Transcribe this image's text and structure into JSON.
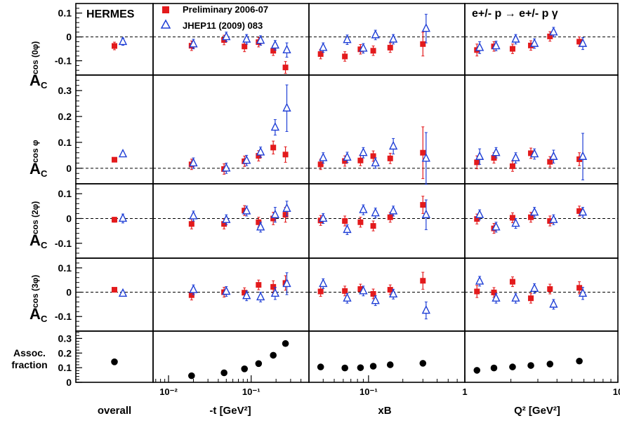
{
  "labels": {
    "experiment": "HERMES",
    "reaction": "e+/- p → e+/- p γ",
    "legend_prelim": "Preliminary 2006-07",
    "legend_jhep": "JHEP11 (2009) 083",
    "row_labels": [
      {
        "main": "A",
        "sub": "C",
        "sup": "cos (0φ)"
      },
      {
        "main": "A",
        "sub": "C",
        "sup": "cos φ"
      },
      {
        "main": "A",
        "sub": "C",
        "sup": "cos (2φ)"
      },
      {
        "main": "A",
        "sub": "C",
        "sup": "cos (3φ)"
      }
    ],
    "assoc_label": [
      "Assoc.",
      "fraction"
    ],
    "col_labels": [
      "overall",
      "-t [GeV²]",
      "xB",
      "Q² [GeV²]"
    ]
  },
  "colors": {
    "prelim": "#e31a1c",
    "jhep": "#1f3fd6"
  },
  "chart_data": {
    "type": "scatter",
    "columns": [
      {
        "name": "overall",
        "scale": "none",
        "xlim": null,
        "ticks": []
      },
      {
        "name": "-t",
        "scale": "log",
        "xlim": [
          0.0065,
          0.5
        ],
        "ticks": [
          {
            "v": 0.01,
            "label": "10⁻²"
          },
          {
            "v": 0.1,
            "label": "10⁻¹"
          }
        ]
      },
      {
        "name": "xB",
        "scale": "log",
        "xlim": [
          0.03,
          0.7
        ],
        "ticks": [
          {
            "v": 0.1,
            "label": "10⁻¹"
          }
        ]
      },
      {
        "name": "Q2",
        "scale": "log",
        "xlim": [
          1,
          10
        ],
        "ticks": [
          {
            "v": 1,
            "label": "1"
          },
          {
            "v": 10,
            "label": "10"
          }
        ]
      }
    ],
    "rows": [
      {
        "name": "cos0phi",
        "ylim": [
          -0.16,
          0.14
        ],
        "ticks": [
          0.1,
          0,
          -0.1
        ],
        "tick_labels": [
          "0.1",
          "0",
          "-0.1"
        ]
      },
      {
        "name": "cosphi",
        "ylim": [
          -0.06,
          0.36
        ],
        "ticks": [
          0.3,
          0.2,
          0.1,
          0
        ],
        "tick_labels": [
          "0.3",
          "0.2",
          "0.1",
          "0"
        ]
      },
      {
        "name": "cos2phi",
        "ylim": [
          -0.16,
          0.14
        ],
        "ticks": [
          0.1,
          0,
          -0.1
        ],
        "tick_labels": [
          "0.1",
          "0",
          "-0.1"
        ]
      },
      {
        "name": "cos3phi",
        "ylim": [
          -0.16,
          0.14
        ],
        "ticks": [
          0.1,
          0,
          -0.1
        ],
        "tick_labels": [
          "0.1",
          "0",
          "-0.1"
        ]
      },
      {
        "name": "assoc",
        "ylim": [
          0,
          0.35
        ],
        "ticks": [
          0.3,
          0.2,
          0.1,
          0
        ],
        "tick_labels": [
          "0.3",
          "0.2",
          "0.1",
          "0"
        ]
      }
    ],
    "x_points": {
      "prelim": [
        [
          0
        ],
        [
          0.019,
          0.047,
          0.083,
          0.123,
          0.185,
          0.26
        ],
        [
          0.038,
          0.062,
          0.085,
          0.11,
          0.155,
          0.3
        ],
        [
          1.2,
          1.55,
          2.05,
          2.7,
          3.6,
          5.6
        ]
      ],
      "jhep": [
        [
          0
        ],
        [
          0.02,
          0.05,
          0.088,
          0.13,
          0.195,
          0.27
        ],
        [
          0.04,
          0.065,
          0.09,
          0.115,
          0.165,
          0.32
        ],
        [
          1.25,
          1.6,
          2.15,
          2.85,
          3.8,
          5.9
        ]
      ]
    },
    "series": [
      {
        "name": "Preliminary 2006-07",
        "values": [
          [
            [
              [
                -0.038,
                0.016
              ]
            ],
            [
              [
                -0.037,
                0.02
              ],
              [
                -0.013,
                0.02
              ],
              [
                -0.04,
                0.022
              ],
              [
                -0.022,
                0.02
              ],
              [
                -0.058,
                0.02
              ],
              [
                -0.128,
                0.025
              ]
            ],
            [
              [
                -0.072,
                0.02
              ],
              [
                -0.082,
                0.02
              ],
              [
                -0.052,
                0.02
              ],
              [
                -0.058,
                0.02
              ],
              [
                -0.045,
                0.02
              ],
              [
                -0.03,
                0.05
              ]
            ],
            [
              [
                -0.055,
                0.025
              ],
              [
                -0.04,
                0.02
              ],
              [
                -0.05,
                0.02
              ],
              [
                -0.036,
                0.02
              ],
              [
                0.002,
                0.02
              ],
              [
                -0.02,
                0.02
              ]
            ]
          ],
          [
            [
              [
                0.033,
                0.008
              ]
            ],
            [
              [
                0.015,
                0.02
              ],
              [
                -0.003,
                0.02
              ],
              [
                0.027,
                0.02
              ],
              [
                0.048,
                0.02
              ],
              [
                0.08,
                0.025
              ],
              [
                0.053,
                0.03
              ]
            ],
            [
              [
                0.015,
                0.02
              ],
              [
                0.028,
                0.02
              ],
              [
                0.03,
                0.02
              ],
              [
                0.047,
                0.02
              ],
              [
                0.038,
                0.02
              ],
              [
                0.06,
                0.1
              ]
            ],
            [
              [
                0.023,
                0.025
              ],
              [
                0.04,
                0.02
              ],
              [
                0.008,
                0.02
              ],
              [
                0.058,
                0.02
              ],
              [
                0.025,
                0.02
              ],
              [
                0.035,
                0.025
              ]
            ]
          ],
          [
            [
              [
                -0.005,
                0.01
              ]
            ],
            [
              [
                -0.022,
                0.02
              ],
              [
                -0.022,
                0.02
              ],
              [
                0.032,
                0.02
              ],
              [
                -0.015,
                0.02
              ],
              [
                0.0,
                0.025
              ],
              [
                0.015,
                0.03
              ]
            ],
            [
              [
                -0.008,
                0.02
              ],
              [
                -0.01,
                0.02
              ],
              [
                -0.015,
                0.02
              ],
              [
                -0.03,
                0.02
              ],
              [
                0.005,
                0.02
              ],
              [
                0.055,
                0.035
              ]
            ],
            [
              [
                -0.002,
                0.02
              ],
              [
                -0.04,
                0.02
              ],
              [
                0.003,
                0.02
              ],
              [
                0.005,
                0.02
              ],
              [
                -0.01,
                0.02
              ],
              [
                0.03,
                0.02
              ]
            ]
          ],
          [
            [
              [
                0.01,
                0.008
              ]
            ],
            [
              [
                -0.012,
                0.02
              ],
              [
                0.0,
                0.02
              ],
              [
                -0.002,
                0.02
              ],
              [
                0.03,
                0.02
              ],
              [
                0.022,
                0.025
              ],
              [
                0.038,
                0.03
              ]
            ],
            [
              [
                0.003,
                0.02
              ],
              [
                0.005,
                0.02
              ],
              [
                0.013,
                0.02
              ],
              [
                -0.007,
                0.02
              ],
              [
                0.01,
                0.02
              ],
              [
                0.047,
                0.035
              ]
            ],
            [
              [
                0.003,
                0.025
              ],
              [
                -0.001,
                0.02
              ],
              [
                0.043,
                0.02
              ],
              [
                -0.025,
                0.02
              ],
              [
                0.013,
                0.02
              ],
              [
                0.018,
                0.025
              ]
            ]
          ],
          [
            [
              [
                0.14,
                0
              ]
            ],
            [
              [
                0.045,
                0
              ],
              [
                0.065,
                0
              ],
              [
                0.092,
                0
              ],
              [
                0.128,
                0
              ],
              [
                0.185,
                0
              ],
              [
                0.265,
                0
              ]
            ],
            [
              [
                0.105,
                0
              ],
              [
                0.098,
                0
              ],
              [
                0.1,
                0
              ],
              [
                0.11,
                0
              ],
              [
                0.12,
                0
              ],
              [
                0.13,
                0
              ]
            ],
            [
              [
                0.082,
                0
              ],
              [
                0.098,
                0
              ],
              [
                0.105,
                0
              ],
              [
                0.115,
                0
              ],
              [
                0.125,
                0
              ],
              [
                0.145,
                0
              ]
            ]
          ]
        ]
      },
      {
        "name": "JHEP11 (2009) 083",
        "values": [
          [
            [
              [
                -0.02,
                0.015
              ]
            ],
            [
              [
                -0.03,
                0.02
              ],
              [
                0.0,
                0.02
              ],
              [
                -0.01,
                0.02
              ],
              [
                -0.015,
                0.02
              ],
              [
                -0.035,
                0.02
              ],
              [
                -0.055,
                0.03
              ]
            ],
            [
              [
                -0.045,
                0.02
              ],
              [
                -0.012,
                0.02
              ],
              [
                -0.048,
                0.02
              ],
              [
                0.008,
                0.02
              ],
              [
                -0.01,
                0.02
              ],
              [
                0.035,
                0.06
              ]
            ],
            [
              [
                -0.045,
                0.025
              ],
              [
                -0.038,
                0.02
              ],
              [
                -0.01,
                0.02
              ],
              [
                -0.028,
                0.02
              ],
              [
                0.02,
                0.02
              ],
              [
                -0.028,
                0.025
              ]
            ]
          ],
          [
            [
              [
                0.055,
                0.008
              ]
            ],
            [
              [
                0.02,
                0.02
              ],
              [
                0.0,
                0.02
              ],
              [
                0.03,
                0.02
              ],
              [
                0.062,
                0.02
              ],
              [
                0.158,
                0.03
              ],
              [
                0.232,
                0.09
              ]
            ],
            [
              [
                0.04,
                0.02
              ],
              [
                0.042,
                0.02
              ],
              [
                0.06,
                0.02
              ],
              [
                0.02,
                0.02
              ],
              [
                0.085,
                0.03
              ],
              [
                0.038,
                0.1
              ]
            ],
            [
              [
                0.045,
                0.03
              ],
              [
                0.06,
                0.02
              ],
              [
                0.04,
                0.02
              ],
              [
                0.055,
                0.02
              ],
              [
                0.045,
                0.025
              ],
              [
                0.045,
                0.09
              ]
            ]
          ],
          [
            [
              [
                0.0,
                0.018
              ]
            ],
            [
              [
                0.01,
                0.02
              ],
              [
                -0.005,
                0.02
              ],
              [
                0.03,
                0.02
              ],
              [
                -0.035,
                0.02
              ],
              [
                0.015,
                0.03
              ],
              [
                0.04,
                0.03
              ]
            ],
            [
              [
                0.0,
                0.02
              ],
              [
                -0.045,
                0.02
              ],
              [
                0.035,
                0.02
              ],
              [
                0.022,
                0.02
              ],
              [
                0.03,
                0.02
              ],
              [
                0.015,
                0.06
              ]
            ],
            [
              [
                0.015,
                0.02
              ],
              [
                -0.035,
                0.02
              ],
              [
                -0.02,
                0.02
              ],
              [
                0.025,
                0.02
              ],
              [
                -0.005,
                0.02
              ],
              [
                0.025,
                0.02
              ]
            ]
          ],
          [
            [
              [
                -0.005,
                0.01
              ]
            ],
            [
              [
                0.01,
                0.02
              ],
              [
                0.003,
                0.02
              ],
              [
                -0.015,
                0.02
              ],
              [
                -0.02,
                0.02
              ],
              [
                -0.005,
                0.025
              ],
              [
                0.035,
                0.045
              ]
            ],
            [
              [
                0.035,
                0.02
              ],
              [
                -0.025,
                0.02
              ],
              [
                0.005,
                0.02
              ],
              [
                -0.035,
                0.02
              ],
              [
                -0.008,
                0.02
              ],
              [
                -0.075,
                0.035
              ]
            ],
            [
              [
                0.045,
                0.02
              ],
              [
                -0.025,
                0.02
              ],
              [
                -0.025,
                0.02
              ],
              [
                0.015,
                0.02
              ],
              [
                -0.05,
                0.02
              ],
              [
                -0.005,
                0.025
              ]
            ]
          ]
        ]
      }
    ]
  }
}
